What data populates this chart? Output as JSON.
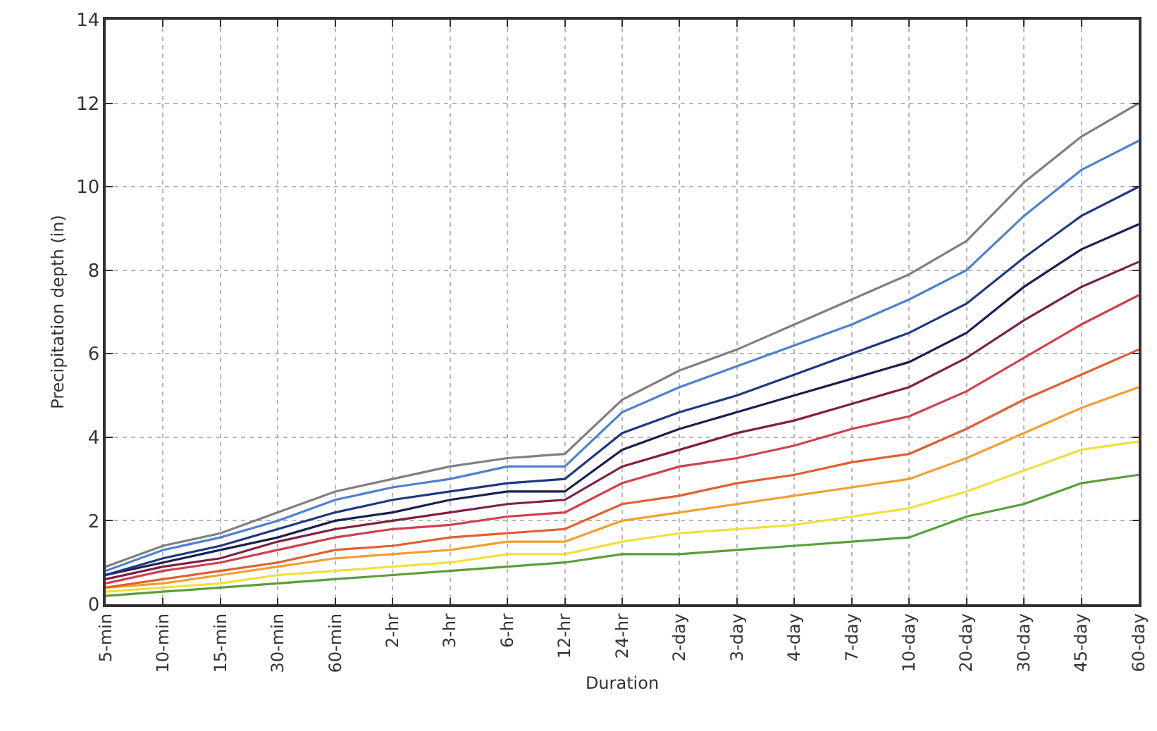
{
  "chart_data": {
    "type": "line",
    "xlabel": "Duration",
    "ylabel": "Precipitation depth (in)",
    "categories": [
      "5-min",
      "10-min",
      "15-min",
      "30-min",
      "60-min",
      "2-hr",
      "3-hr",
      "6-hr",
      "12-hr",
      "24-hr",
      "2-day",
      "3-day",
      "4-day",
      "7-day",
      "10-day",
      "20-day",
      "30-day",
      "45-day",
      "60-day"
    ],
    "ylim": [
      0,
      14
    ],
    "yticks": [
      0,
      2,
      4,
      6,
      8,
      10,
      12,
      14
    ],
    "grid": true,
    "line_style": "solid",
    "series": [
      {
        "color": "#5a9e3a",
        "values": [
          0.2,
          0.3,
          0.4,
          0.5,
          0.6,
          0.7,
          0.8,
          0.9,
          1.0,
          1.2,
          1.2,
          1.3,
          1.4,
          1.5,
          1.6,
          2.1,
          2.4,
          2.9,
          3.1
        ]
      },
      {
        "color": "#f0e040",
        "values": [
          0.3,
          0.4,
          0.5,
          0.7,
          0.8,
          0.9,
          1.0,
          1.2,
          1.2,
          1.5,
          1.7,
          1.8,
          1.9,
          2.1,
          2.3,
          2.7,
          3.2,
          3.7,
          3.9
        ]
      },
      {
        "color": "#f0a030",
        "values": [
          0.4,
          0.5,
          0.7,
          0.9,
          1.1,
          1.2,
          1.3,
          1.5,
          1.5,
          2.0,
          2.2,
          2.4,
          2.6,
          2.8,
          3.0,
          3.5,
          4.1,
          4.7,
          5.2
        ]
      },
      {
        "color": "#e06030",
        "values": [
          0.4,
          0.6,
          0.8,
          1.0,
          1.3,
          1.4,
          1.6,
          1.7,
          1.8,
          2.4,
          2.6,
          2.9,
          3.1,
          3.4,
          3.6,
          4.2,
          4.9,
          5.5,
          6.1
        ]
      },
      {
        "color": "#d04050",
        "values": [
          0.5,
          0.8,
          1.0,
          1.3,
          1.6,
          1.8,
          1.9,
          2.1,
          2.2,
          2.9,
          3.3,
          3.5,
          3.8,
          4.2,
          4.5,
          5.1,
          5.9,
          6.7,
          7.4
        ]
      },
      {
        "color": "#802040",
        "values": [
          0.6,
          0.9,
          1.1,
          1.5,
          1.8,
          2.0,
          2.2,
          2.4,
          2.5,
          3.3,
          3.7,
          4.1,
          4.4,
          4.8,
          5.2,
          5.9,
          6.8,
          7.6,
          8.2
        ]
      },
      {
        "color": "#1a2050",
        "values": [
          0.7,
          1.0,
          1.3,
          1.6,
          2.0,
          2.2,
          2.5,
          2.7,
          2.7,
          3.7,
          4.2,
          4.6,
          5.0,
          5.4,
          5.8,
          6.5,
          7.6,
          8.5,
          9.1
        ]
      },
      {
        "color": "#203880",
        "values": [
          0.7,
          1.1,
          1.4,
          1.8,
          2.2,
          2.5,
          2.7,
          2.9,
          3.0,
          4.1,
          4.6,
          5.0,
          5.5,
          6.0,
          6.5,
          7.2,
          8.3,
          9.3,
          10.0
        ]
      },
      {
        "color": "#5080d0",
        "values": [
          0.8,
          1.3,
          1.6,
          2.0,
          2.5,
          2.8,
          3.0,
          3.3,
          3.3,
          4.6,
          5.2,
          5.7,
          6.2,
          6.7,
          7.3,
          8.0,
          9.3,
          10.4,
          11.1
        ]
      },
      {
        "color": "#808080",
        "values": [
          0.9,
          1.4,
          1.7,
          2.2,
          2.7,
          3.0,
          3.3,
          3.5,
          3.6,
          4.9,
          5.6,
          6.1,
          6.7,
          7.3,
          7.9,
          8.7,
          10.1,
          11.2,
          12.0
        ]
      }
    ]
  }
}
